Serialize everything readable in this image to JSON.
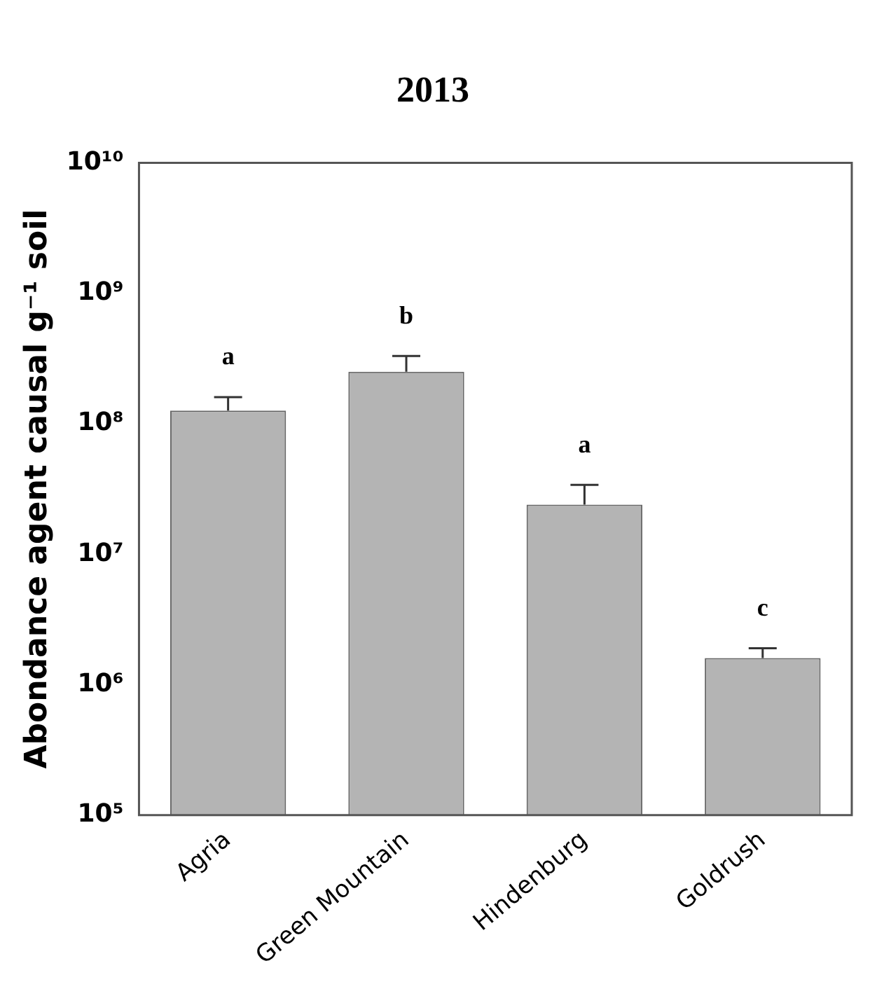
{
  "chart_data": {
    "type": "bar",
    "title": "2013",
    "ylabel": "Abondance agent causal g⁻¹ soil",
    "categories": [
      "Agria",
      "Green Mountain",
      "Hindenburg",
      "Goldrush"
    ],
    "values": [
      126000000,
      250000000,
      24000000,
      1600000
    ],
    "color": "#b4b4b4",
    "errors": [
      [
        126000000,
        160000000
      ],
      [
        250000000,
        330000000
      ],
      [
        24000000,
        34000000
      ],
      [
        1600000,
        1900000
      ]
    ],
    "log": "y",
    "ylim": [
      100000,
      10000000000
    ],
    "yticks": [
      {
        "value": 100000,
        "label": "10⁵"
      },
      {
        "value": 1000000,
        "label": "10⁶"
      },
      {
        "value": 10000000,
        "label": "10⁷"
      },
      {
        "value": 100000000,
        "label": "10⁸"
      },
      {
        "value": 1000000000,
        "label": "10⁹"
      },
      {
        "value": 10000000000,
        "label": "10¹⁰"
      }
    ],
    "grid": false,
    "legend": false,
    "annotations": [
      "a",
      "b",
      "a",
      "c"
    ]
  }
}
